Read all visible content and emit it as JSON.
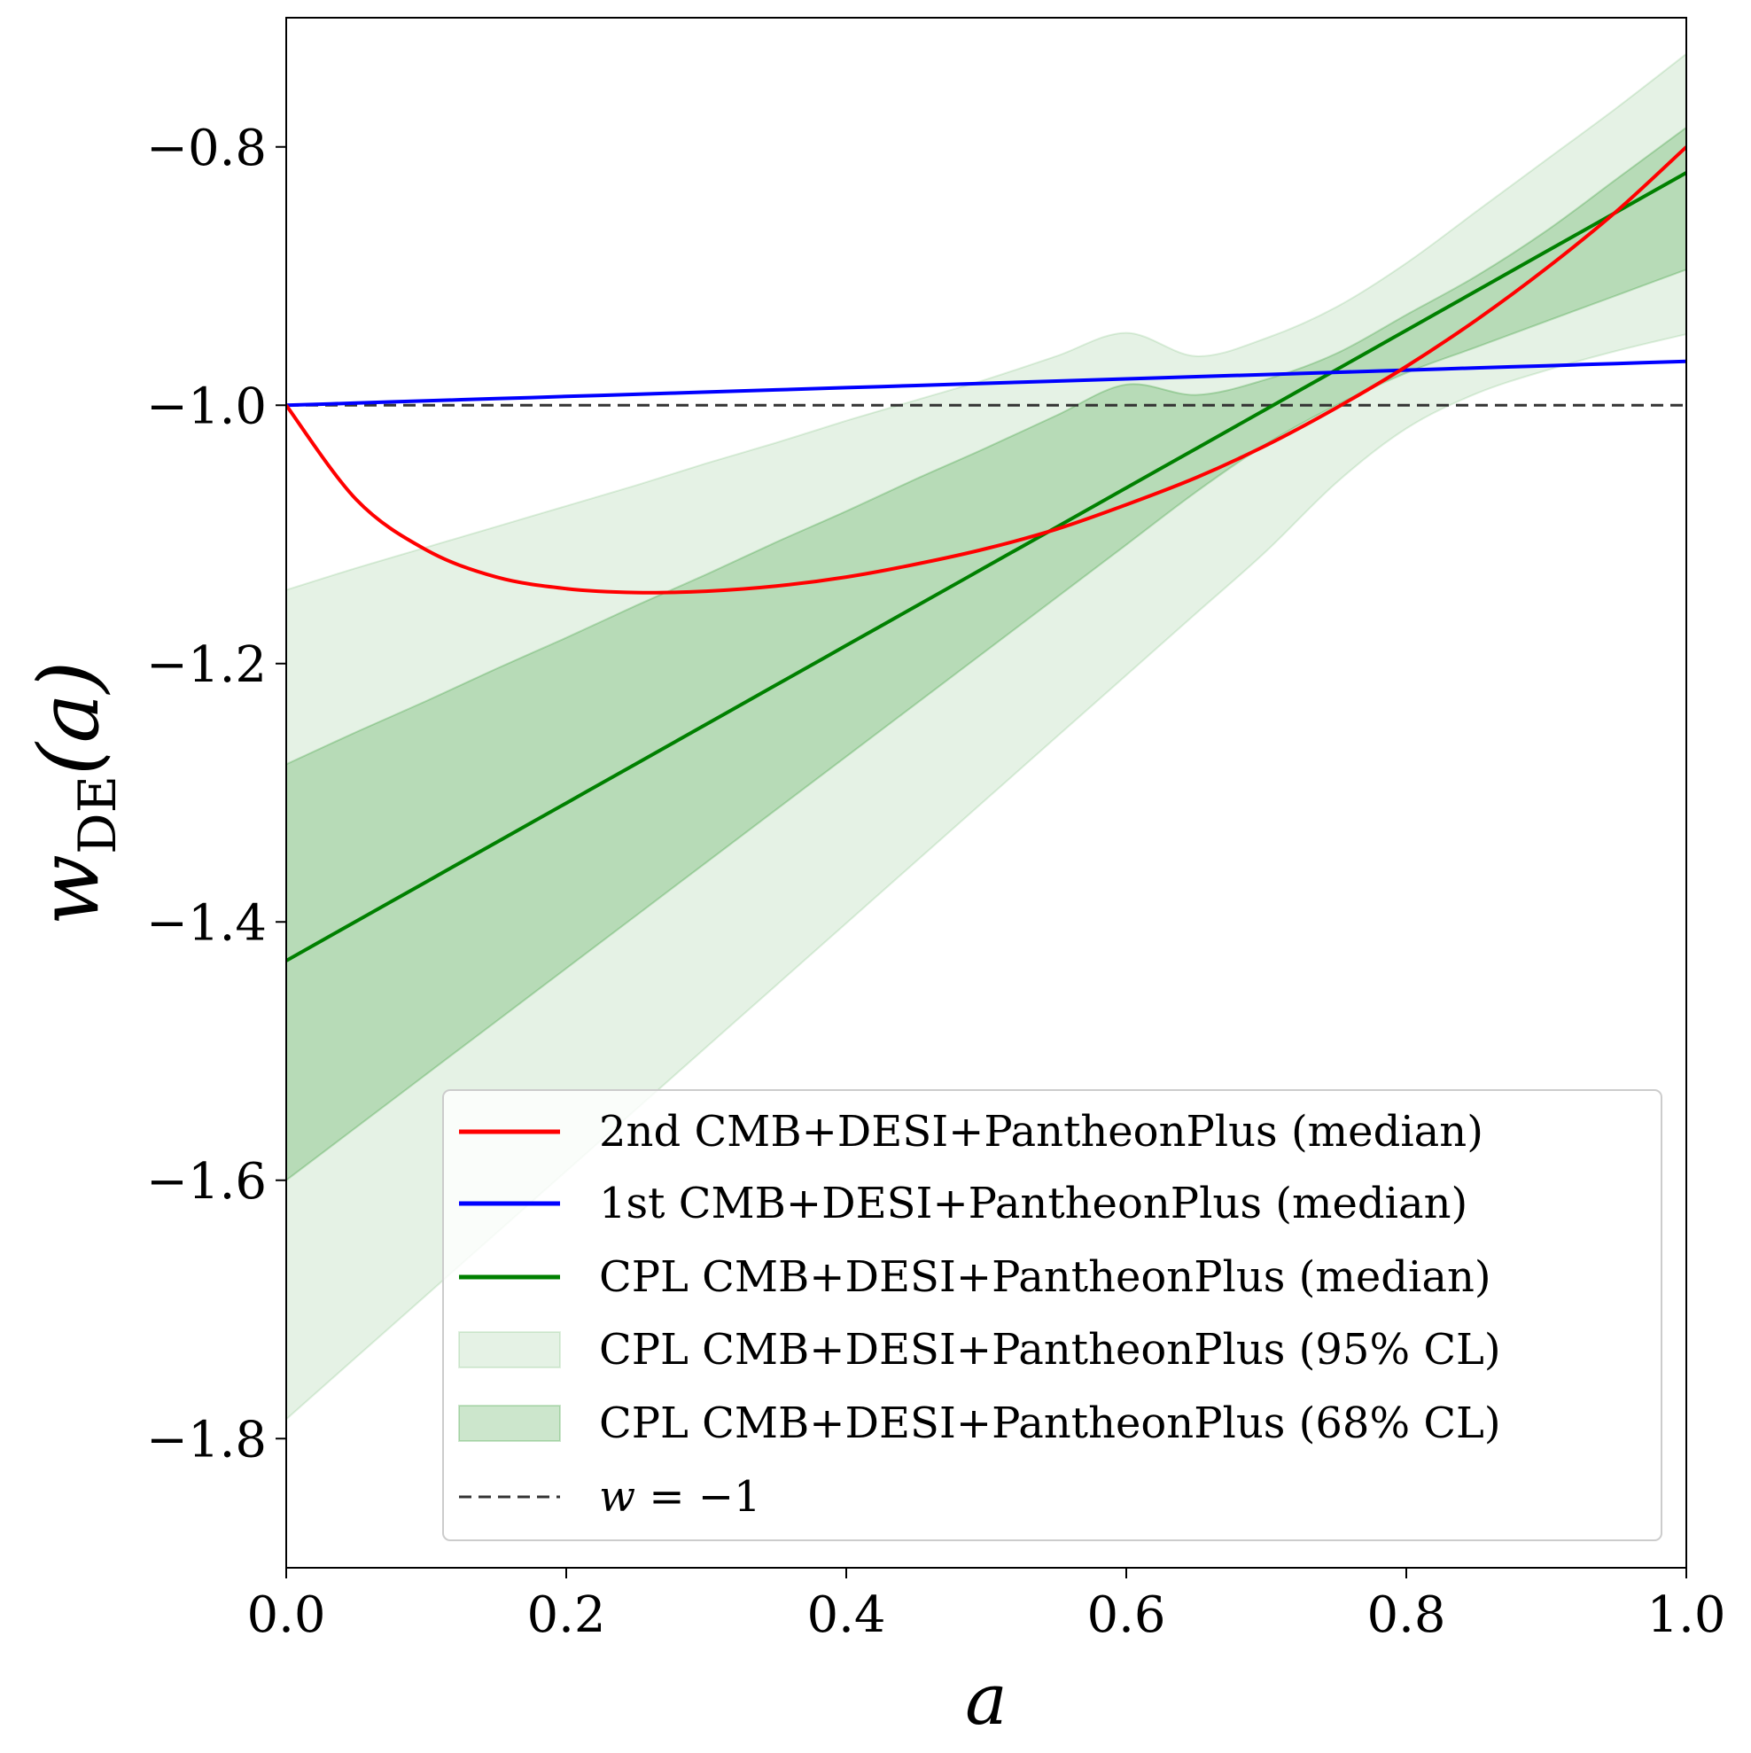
{
  "chart_data": {
    "type": "line",
    "xlabel": "a",
    "ylabel": "w",
    "ylabel_sub": "DE",
    "ylabel_arg": "(a)",
    "xlim": [
      0.0,
      1.0
    ],
    "ylim": [
      -1.9,
      -0.7
    ],
    "xticks": [
      0.0,
      0.2,
      0.4,
      0.6,
      0.8,
      1.0
    ],
    "xtick_labels": [
      "0.0",
      "0.2",
      "0.4",
      "0.6",
      "0.8",
      "1.0"
    ],
    "yticks": [
      -0.8,
      -1.0,
      -1.2,
      -1.4,
      -1.6,
      -1.8
    ],
    "ytick_labels": [
      "−0.8",
      "−1.0",
      "−1.2",
      "−1.4",
      "−1.6",
      "−1.8"
    ],
    "grid": false,
    "legend_position": "lower-right",
    "x": [
      0.0,
      0.05,
      0.1,
      0.15,
      0.2,
      0.25,
      0.3,
      0.35,
      0.4,
      0.45,
      0.5,
      0.55,
      0.6,
      0.65,
      0.7,
      0.75,
      0.8,
      0.85,
      0.9,
      0.95,
      1.0
    ],
    "series": [
      {
        "name": "2nd CMB+DESI+PantheonPlus (median)",
        "color": "#ff0000",
        "style": "solid",
        "values": [
          -1.0,
          -1.073,
          -1.112,
          -1.133,
          -1.142,
          -1.145,
          -1.144,
          -1.14,
          -1.133,
          -1.123,
          -1.111,
          -1.096,
          -1.077,
          -1.056,
          -1.031,
          -1.002,
          -0.97,
          -0.934,
          -0.894,
          -0.85,
          -0.8
        ]
      },
      {
        "name": "1st CMB+DESI+PantheonPlus (median)",
        "color": "#0000ff",
        "style": "solid",
        "values": [
          -1.0,
          -0.9983,
          -0.9966,
          -0.9949,
          -0.9932,
          -0.9915,
          -0.9898,
          -0.9881,
          -0.9864,
          -0.9847,
          -0.983,
          -0.9813,
          -0.9796,
          -0.9779,
          -0.9762,
          -0.9745,
          -0.9728,
          -0.9711,
          -0.9694,
          -0.9677,
          -0.966
        ]
      },
      {
        "name": "CPL CMB+DESI+PantheonPlus (median)",
        "color": "#008000",
        "style": "solid",
        "values": [
          -1.43,
          -1.3995,
          -1.369,
          -1.3385,
          -1.308,
          -1.2775,
          -1.247,
          -1.2165,
          -1.186,
          -1.1555,
          -1.125,
          -1.0945,
          -1.064,
          -1.0335,
          -1.003,
          -0.9725,
          -0.942,
          -0.9115,
          -0.881,
          -0.8505,
          -0.82
        ]
      }
    ],
    "bands": [
      {
        "name": "CPL CMB+DESI+PantheonPlus (95% CL)",
        "color": "#008000",
        "opacity": 0.1,
        "lower": [
          -1.785,
          -1.737,
          -1.689,
          -1.641,
          -1.593,
          -1.545,
          -1.497,
          -1.449,
          -1.401,
          -1.353,
          -1.305,
          -1.257,
          -1.209,
          -1.161,
          -1.113,
          -1.06,
          -1.018,
          -0.991,
          -0.973,
          -0.958,
          -0.945
        ],
        "upper": [
          -1.143,
          -1.126,
          -1.11,
          -1.094,
          -1.078,
          -1.062,
          -1.045,
          -1.029,
          -1.012,
          -0.996,
          -0.98,
          -0.962,
          -0.944,
          -0.962,
          -0.948,
          -0.924,
          -0.89,
          -0.85,
          -0.81,
          -0.77,
          -0.728
        ]
      },
      {
        "name": "CPL CMB+DESI+PantheonPlus (68% CL)",
        "color": "#008000",
        "opacity": 0.2,
        "lower": [
          -1.6,
          -1.559,
          -1.518,
          -1.477,
          -1.436,
          -1.395,
          -1.354,
          -1.313,
          -1.272,
          -1.231,
          -1.19,
          -1.149,
          -1.108,
          -1.067,
          -1.03,
          -1.0,
          -0.975,
          -0.955,
          -0.935,
          -0.915,
          -0.895
        ],
        "upper": [
          -1.278,
          -1.253,
          -1.229,
          -1.204,
          -1.18,
          -1.155,
          -1.131,
          -1.106,
          -1.082,
          -1.057,
          -1.033,
          -1.008,
          -0.984,
          -0.992,
          -0.98,
          -0.96,
          -0.93,
          -0.9,
          -0.865,
          -0.825,
          -0.785
        ]
      }
    ],
    "reference_line": {
      "name": "w = −1",
      "label_w": "w",
      "label_rest": " = −1",
      "value": -1.0,
      "color": "#333333",
      "style": "dashed"
    }
  }
}
